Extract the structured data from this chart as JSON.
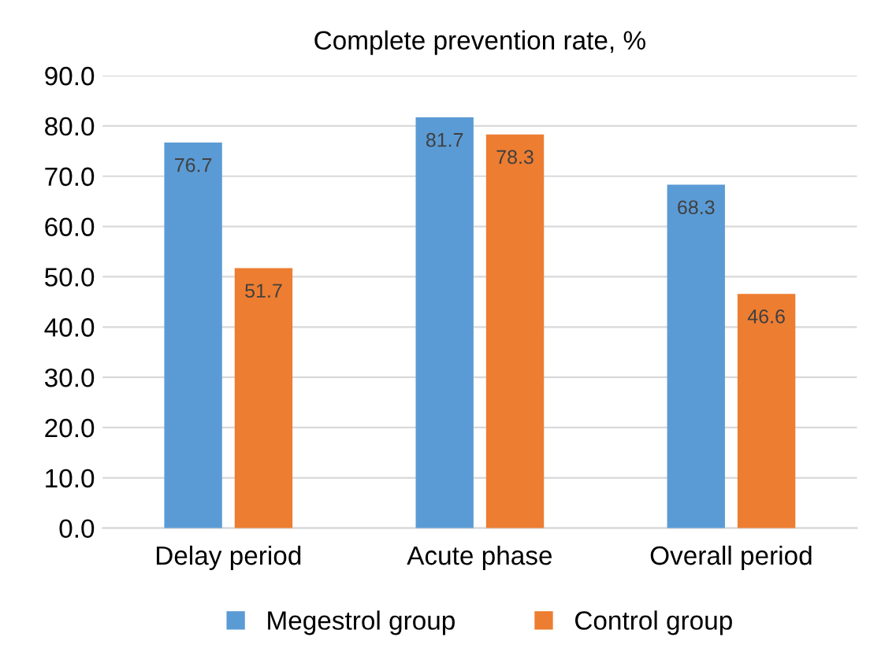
{
  "chart_data": {
    "type": "bar",
    "title": "Complete prevention rate, %",
    "categories": [
      "Delay period",
      "Acute phase",
      "Overall period"
    ],
    "series": [
      {
        "name": "Megestrol group",
        "color": "#5b9bd5",
        "values": [
          76.7,
          81.7,
          68.3
        ]
      },
      {
        "name": "Control group",
        "color": "#ed7d31",
        "values": [
          51.7,
          78.3,
          46.6
        ]
      }
    ],
    "ylim": [
      0,
      90
    ],
    "yticks": [
      {
        "value": 0,
        "label": "0.0"
      },
      {
        "value": 10,
        "label": "10.0"
      },
      {
        "value": 20,
        "label": "20.0"
      },
      {
        "value": 30,
        "label": "30.0"
      },
      {
        "value": 40,
        "label": "40.0"
      },
      {
        "value": 50,
        "label": "50.0"
      },
      {
        "value": 60,
        "label": "60.0"
      },
      {
        "value": 70,
        "label": "70.0"
      },
      {
        "value": 80,
        "label": "80.0"
      },
      {
        "value": 90,
        "label": "90.0"
      }
    ],
    "grid": "y",
    "legend": "bottom",
    "data_labels": true
  }
}
